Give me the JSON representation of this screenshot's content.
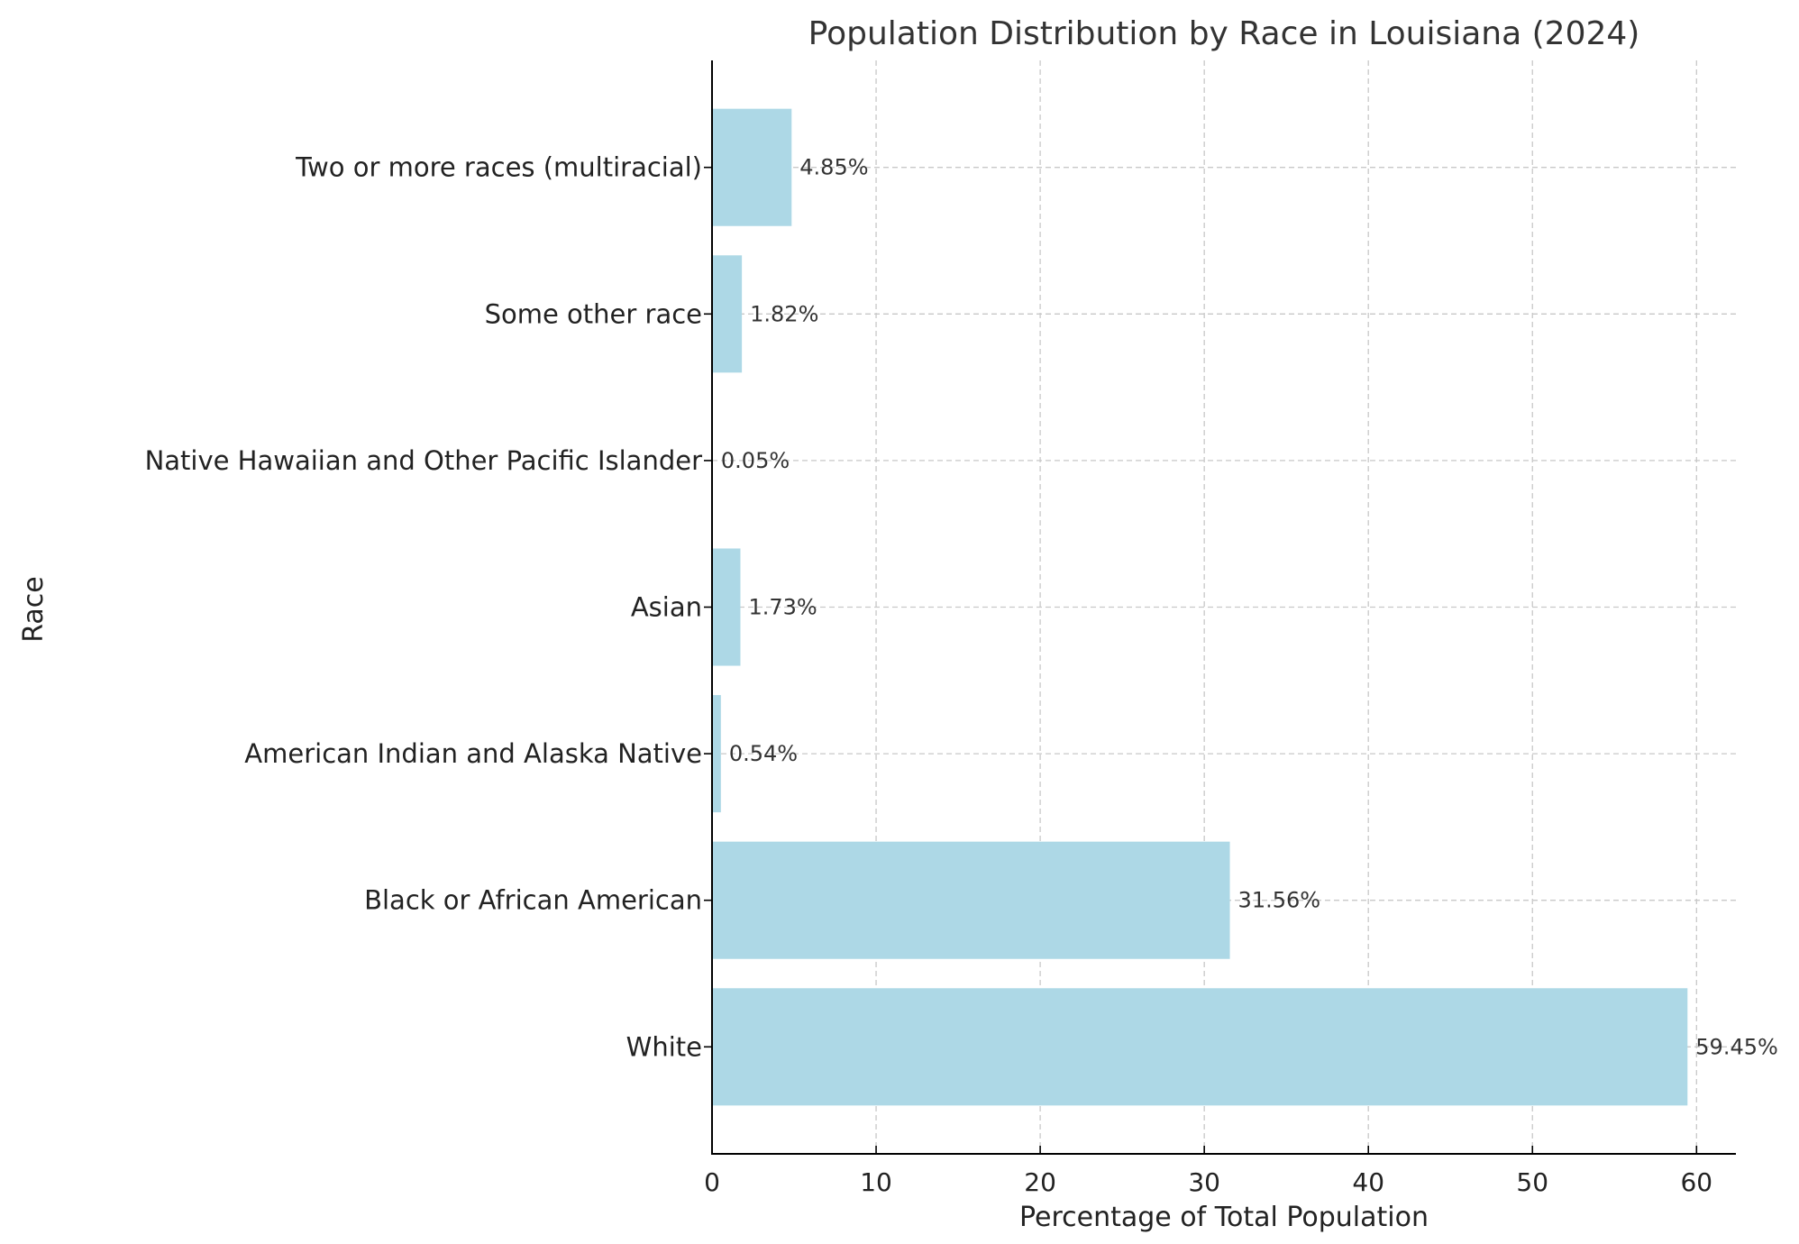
{
  "chart_data": {
    "type": "bar",
    "orientation": "horizontal",
    "title": "Population Distribution by Race in Louisiana (2024)",
    "xlabel": "Percentage of Total Population",
    "ylabel": "Race",
    "categories": [
      "White",
      "Black or African American",
      "American Indian and Alaska Native",
      "Asian",
      "Native Hawaiian and Other Pacific Islander",
      "Some other race",
      "Two or more races (multiracial)"
    ],
    "values": [
      59.45,
      31.56,
      0.54,
      1.73,
      0.05,
      1.82,
      4.85
    ],
    "data_labels": [
      "59.45%",
      "31.56%",
      "0.54%",
      "1.73%",
      "0.05%",
      "1.82%",
      "4.85%"
    ],
    "xticks": [
      0,
      10,
      20,
      30,
      40,
      50,
      60
    ],
    "xlim": [
      0,
      62.4
    ],
    "grid": true,
    "grid_style": "dashed",
    "bar_color": "#add8e6"
  }
}
